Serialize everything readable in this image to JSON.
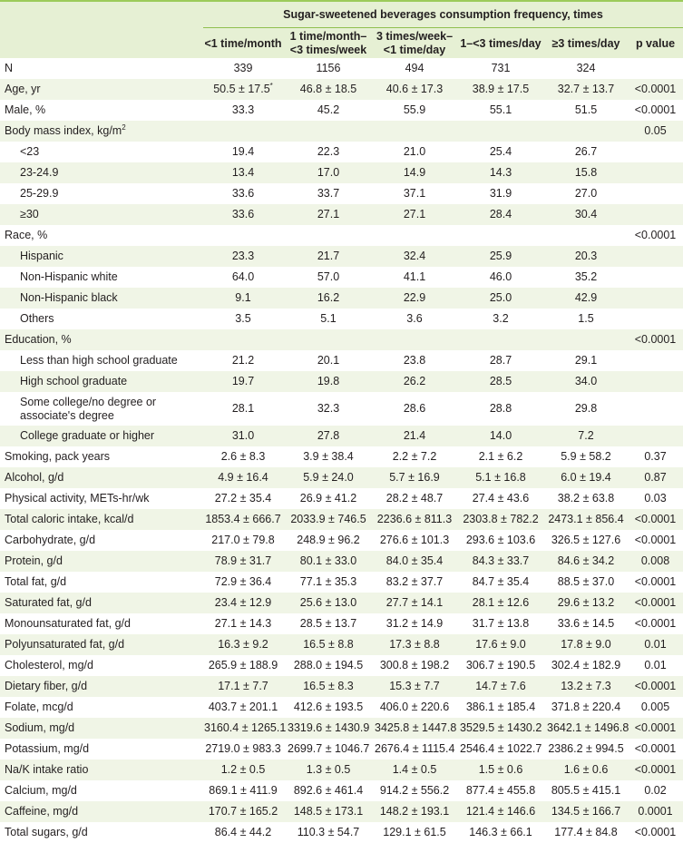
{
  "header": {
    "group_title": "Sugar-sweetened beverages consumption frequency, times",
    "columns": [
      "<1 time/month",
      "1 time/month–\n<3 times/week",
      "3 times/week–\n<1 time/day",
      "1–<3 times/day",
      "≥3 times/day",
      "p value"
    ]
  },
  "rows": [
    {
      "label": "N",
      "values": [
        "339",
        "1156",
        "494",
        "731",
        "324"
      ],
      "p": ""
    },
    {
      "label": "Age, yr",
      "values": [
        "50.5 ± 17.5",
        "46.8 ± 18.5",
        "40.6 ± 17.3",
        "38.9 ± 17.5",
        "32.7 ± 13.7"
      ],
      "p": "<0.0001",
      "first_value_note": "*"
    },
    {
      "label": "Male, %",
      "values": [
        "33.3",
        "45.2",
        "55.9",
        "55.1",
        "51.5"
      ],
      "p": "<0.0001"
    },
    {
      "label": "Body mass index, kg/m",
      "label_sup": "2",
      "values": [
        "",
        "",
        "",
        "",
        ""
      ],
      "p": "0.05"
    },
    {
      "label": "<23",
      "indent": true,
      "values": [
        "19.4",
        "22.3",
        "21.0",
        "25.4",
        "26.7"
      ],
      "p": ""
    },
    {
      "label": "23-24.9",
      "indent": true,
      "values": [
        "13.4",
        "17.0",
        "14.9",
        "14.3",
        "15.8"
      ],
      "p": ""
    },
    {
      "label": "25-29.9",
      "indent": true,
      "values": [
        "33.6",
        "33.7",
        "37.1",
        "31.9",
        "27.0"
      ],
      "p": ""
    },
    {
      "label": "≥30",
      "indent": true,
      "values": [
        "33.6",
        "27.1",
        "27.1",
        "28.4",
        "30.4"
      ],
      "p": ""
    },
    {
      "label": "Race, %",
      "values": [
        "",
        "",
        "",
        "",
        ""
      ],
      "p": "<0.0001"
    },
    {
      "label": "Hispanic",
      "indent": true,
      "values": [
        "23.3",
        "21.7",
        "32.4",
        "25.9",
        "20.3"
      ],
      "p": ""
    },
    {
      "label": "Non-Hispanic white",
      "indent": true,
      "values": [
        "64.0",
        "57.0",
        "41.1",
        "46.0",
        "35.2"
      ],
      "p": ""
    },
    {
      "label": "Non-Hispanic black",
      "indent": true,
      "values": [
        "9.1",
        "16.2",
        "22.9",
        "25.0",
        "42.9"
      ],
      "p": ""
    },
    {
      "label": "Others",
      "indent": true,
      "values": [
        "3.5",
        "5.1",
        "3.6",
        "3.2",
        "1.5"
      ],
      "p": ""
    },
    {
      "label": "Education, %",
      "values": [
        "",
        "",
        "",
        "",
        ""
      ],
      "p": "<0.0001"
    },
    {
      "label": "Less than high school graduate",
      "indent": true,
      "values": [
        "21.2",
        "20.1",
        "23.8",
        "28.7",
        "29.1"
      ],
      "p": ""
    },
    {
      "label": "High school graduate",
      "indent": true,
      "values": [
        "19.7",
        "19.8",
        "26.2",
        "28.5",
        "34.0"
      ],
      "p": ""
    },
    {
      "label": "Some college/no degree or associate's degree",
      "indent": true,
      "wrap": true,
      "values": [
        "28.1",
        "32.3",
        "28.6",
        "28.8",
        "29.8"
      ],
      "p": ""
    },
    {
      "label": "College graduate or higher",
      "indent": true,
      "values": [
        "31.0",
        "27.8",
        "21.4",
        "14.0",
        "7.2"
      ],
      "p": ""
    },
    {
      "label": "Smoking, pack years",
      "values": [
        "2.6 ± 8.3",
        "3.9 ± 38.4",
        "2.2 ± 7.2",
        "2.1 ± 6.2",
        "5.9 ± 58.2"
      ],
      "p": "0.37"
    },
    {
      "label": "Alcohol, g/d",
      "values": [
        "4.9 ± 16.4",
        "5.9 ± 24.0",
        "5.7 ± 16.9",
        "5.1 ± 16.8",
        "6.0 ± 19.4"
      ],
      "p": "0.87"
    },
    {
      "label": "Physical activity, METs-hr/wk",
      "values": [
        "27.2 ± 35.4",
        "26.9 ± 41.2",
        "28.2 ± 48.7",
        "27.4 ± 43.6",
        "38.2 ± 63.8"
      ],
      "p": "0.03"
    },
    {
      "label": "Total caloric intake, kcal/d",
      "values": [
        "1853.4 ± 666.7",
        "2033.9 ± 746.5",
        "2236.6 ± 811.3",
        "2303.8 ± 782.2",
        "2473.1 ± 856.4"
      ],
      "p": "<0.0001"
    },
    {
      "label": "Carbohydrate, g/d",
      "values": [
        "217.0 ± 79.8",
        "248.9 ± 96.2",
        "276.6 ± 101.3",
        "293.6 ± 103.6",
        "326.5 ± 127.6"
      ],
      "p": "<0.0001"
    },
    {
      "label": "Protein, g/d",
      "values": [
        "78.9 ± 31.7",
        "80.1 ± 33.0",
        "84.0 ± 35.4",
        "84.3 ± 33.7",
        "84.6 ± 34.2"
      ],
      "p": "0.008"
    },
    {
      "label": "Total fat, g/d",
      "values": [
        "72.9 ± 36.4",
        "77.1 ± 35.3",
        "83.2 ± 37.7",
        "84.7 ± 35.4",
        "88.5 ± 37.0"
      ],
      "p": "<0.0001"
    },
    {
      "label": "Saturated fat, g/d",
      "values": [
        "23.4 ± 12.9",
        "25.6 ± 13.0",
        "27.7 ± 14.1",
        "28.1 ± 12.6",
        "29.6 ± 13.2"
      ],
      "p": "<0.0001"
    },
    {
      "label": "Monounsaturated fat, g/d",
      "values": [
        "27.1 ± 14.3",
        "28.5 ± 13.7",
        "31.2 ± 14.9",
        "31.7 ± 13.8",
        "33.6 ± 14.5"
      ],
      "p": "<0.0001"
    },
    {
      "label": "Polyunsaturated fat, g/d",
      "values": [
        "16.3 ± 9.2",
        "16.5 ± 8.8",
        "17.3 ± 8.8",
        "17.6 ± 9.0",
        "17.8 ± 9.0"
      ],
      "p": "0.01"
    },
    {
      "label": "Cholesterol, mg/d",
      "values": [
        "265.9 ± 188.9",
        "288.0 ± 194.5",
        "300.8 ± 198.2",
        "306.7 ± 190.5",
        "302.4 ± 182.9"
      ],
      "p": "0.01"
    },
    {
      "label": "Dietary fiber, g/d",
      "values": [
        "17.1 ± 7.7",
        "16.5 ± 8.3",
        "15.3 ± 7.7",
        "14.7 ± 7.6",
        "13.2 ± 7.3"
      ],
      "p": "<0.0001"
    },
    {
      "label": "Folate, mcg/d",
      "values": [
        "403.7 ± 201.1",
        "412.6 ± 193.5",
        "406.0 ± 220.6",
        "386.1 ± 185.4",
        "371.8 ± 220.4"
      ],
      "p": "0.005"
    },
    {
      "label": "Sodium, mg/d",
      "values": [
        "3160.4 ± 1265.1",
        "3319.6 ± 1430.9",
        "3425.8 ± 1447.8",
        "3529.5 ± 1430.2",
        "3642.1 ± 1496.8"
      ],
      "p": "<0.0001"
    },
    {
      "label": "Potassium, mg/d",
      "values": [
        "2719.0 ± 983.3",
        "2699.7 ± 1046.7",
        "2676.4 ± 1115.4",
        "2546.4 ± 1022.7",
        "2386.2 ± 994.5"
      ],
      "p": "<0.0001"
    },
    {
      "label": "Na/K intake ratio",
      "values": [
        "1.2 ± 0.5",
        "1.3 ± 0.5",
        "1.4 ± 0.5",
        "1.5 ± 0.6",
        "1.6 ± 0.6"
      ],
      "p": "<0.0001"
    },
    {
      "label": "Calcium, mg/d",
      "values": [
        "869.1 ± 411.9",
        "892.6 ± 461.4",
        "914.2 ± 556.2",
        "877.4 ± 455.8",
        "805.5 ± 415.1"
      ],
      "p": "0.02"
    },
    {
      "label": "Caffeine, mg/d",
      "values": [
        "170.7 ± 165.2",
        "148.5 ± 173.1",
        "148.2 ± 193.1",
        "121.4 ± 146.6",
        "134.5 ± 166.7"
      ],
      "p": "0.0001"
    },
    {
      "label": "Total sugars, g/d",
      "values": [
        "86.4 ± 44.2",
        "110.3 ± 54.7",
        "129.1 ± 61.5",
        "146.3 ± 66.1",
        "177.4 ± 84.8"
      ],
      "p": "<0.0001"
    }
  ],
  "colors": {
    "header_bg": "#e6f0d4",
    "stripe_bg": "#f0f5e6",
    "rule": "#9ccb5a"
  }
}
